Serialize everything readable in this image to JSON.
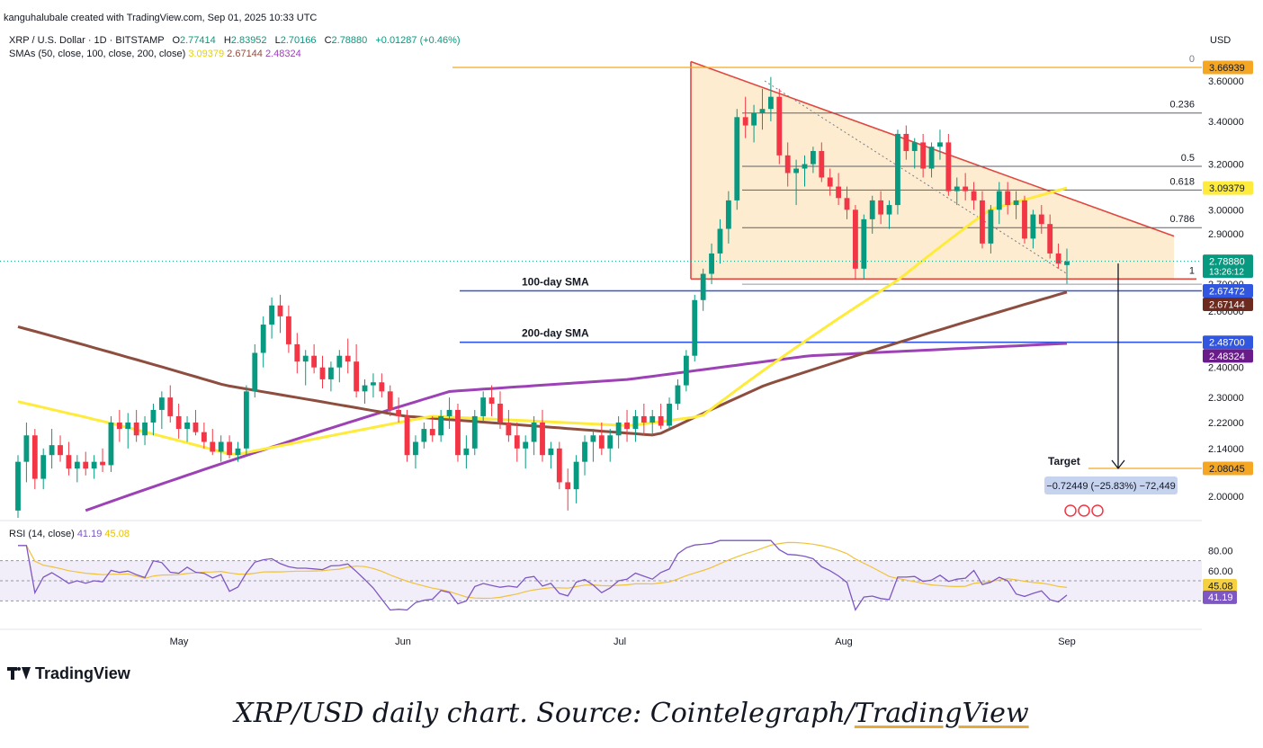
{
  "header": {
    "published": "kanguhalubale created with TradingView.com, Sep 01, 2025 10:33 UTC"
  },
  "legend": {
    "symbol": "XRP / U.S. Dollar · 1D · BITSTAMP",
    "open_label": "O",
    "open": "2.77414",
    "high_label": "H",
    "high": "2.83952",
    "low_label": "L",
    "low": "2.70166",
    "close_label": "C",
    "close": "2.78880",
    "change": "+0.01287 (+0.46%)",
    "sma_label": "SMAs (50, close, 100, close, 200, close)",
    "sma50": "3.09379",
    "sma100": "2.67144",
    "sma200": "2.48324"
  },
  "rsi_legend": {
    "label": "RSI (14, close)",
    "rsi": "41.19",
    "ma": "45.08"
  },
  "currency": "USD",
  "brand": "TradingView",
  "caption": {
    "part1": "XRP/USD daily chart. Source: Cointelegraph/",
    "part2": "TradingView"
  },
  "colors": {
    "up": "#089981",
    "down": "#f23645",
    "sma50": "#ffeb3b",
    "sma100": "#8d4e3f",
    "sma200": "#9c42b5",
    "triangle_fill": "#fde5c2",
    "triangle_line": "#e0473f",
    "fib": "#131722",
    "level_line": "#3157e0",
    "top_line": "#f5a623",
    "rsi": "#7e57c2"
  },
  "chart_data": {
    "type": "candlestick",
    "y_axis": {
      "ticks": [
        "3.60000",
        "3.40000",
        "3.20000",
        "3.00000",
        "2.90000",
        "2.70000",
        "2.60000",
        "2.40000",
        "2.30000",
        "2.22000",
        "2.14000",
        "2.00000"
      ],
      "min": 1.94,
      "max": 3.72,
      "scale": "log"
    },
    "x_axis": {
      "labels": [
        "May",
        "Jun",
        "Jul",
        "Aug",
        "Sep"
      ]
    },
    "candles_ohlc": [
      [
        1.96,
        2.12,
        1.94,
        2.1
      ],
      [
        2.1,
        2.22,
        2.04,
        2.18
      ],
      [
        2.18,
        2.2,
        2.02,
        2.05
      ],
      [
        2.05,
        2.14,
        2.02,
        2.12
      ],
      [
        2.12,
        2.2,
        2.08,
        2.15
      ],
      [
        2.15,
        2.18,
        2.1,
        2.12
      ],
      [
        2.12,
        2.16,
        2.06,
        2.08
      ],
      [
        2.08,
        2.12,
        2.04,
        2.1
      ],
      [
        2.1,
        2.13,
        2.06,
        2.08
      ],
      [
        2.08,
        2.12,
        2.05,
        2.1
      ],
      [
        2.1,
        2.14,
        2.07,
        2.09
      ],
      [
        2.09,
        2.24,
        2.07,
        2.22
      ],
      [
        2.22,
        2.26,
        2.16,
        2.2
      ],
      [
        2.2,
        2.25,
        2.14,
        2.22
      ],
      [
        2.22,
        2.26,
        2.16,
        2.18
      ],
      [
        2.18,
        2.24,
        2.15,
        2.22
      ],
      [
        2.22,
        2.28,
        2.18,
        2.26
      ],
      [
        2.26,
        2.32,
        2.2,
        2.3
      ],
      [
        2.3,
        2.34,
        2.22,
        2.24
      ],
      [
        2.24,
        2.28,
        2.17,
        2.2
      ],
      [
        2.2,
        2.24,
        2.16,
        2.22
      ],
      [
        2.22,
        2.26,
        2.18,
        2.19
      ],
      [
        2.19,
        2.22,
        2.14,
        2.16
      ],
      [
        2.16,
        2.2,
        2.12,
        2.13
      ],
      [
        2.13,
        2.18,
        2.1,
        2.16
      ],
      [
        2.16,
        2.18,
        2.11,
        2.12
      ],
      [
        2.12,
        2.16,
        2.1,
        2.14
      ],
      [
        2.14,
        2.34,
        2.12,
        2.32
      ],
      [
        2.32,
        2.48,
        2.3,
        2.45
      ],
      [
        2.45,
        2.58,
        2.4,
        2.55
      ],
      [
        2.55,
        2.65,
        2.5,
        2.62
      ],
      [
        2.62,
        2.66,
        2.52,
        2.58
      ],
      [
        2.58,
        2.62,
        2.45,
        2.48
      ],
      [
        2.48,
        2.52,
        2.38,
        2.42
      ],
      [
        2.42,
        2.46,
        2.34,
        2.44
      ],
      [
        2.44,
        2.48,
        2.38,
        2.4
      ],
      [
        2.4,
        2.44,
        2.33,
        2.36
      ],
      [
        2.36,
        2.42,
        2.32,
        2.4
      ],
      [
        2.4,
        2.46,
        2.35,
        2.44
      ],
      [
        2.44,
        2.5,
        2.38,
        2.42
      ],
      [
        2.42,
        2.48,
        2.3,
        2.32
      ],
      [
        2.32,
        2.36,
        2.28,
        2.34
      ],
      [
        2.34,
        2.38,
        2.3,
        2.35
      ],
      [
        2.35,
        2.38,
        2.3,
        2.32
      ],
      [
        2.32,
        2.34,
        2.24,
        2.26
      ],
      [
        2.26,
        2.3,
        2.22,
        2.24
      ],
      [
        2.24,
        2.26,
        2.1,
        2.12
      ],
      [
        2.12,
        2.18,
        2.08,
        2.16
      ],
      [
        2.16,
        2.22,
        2.14,
        2.2
      ],
      [
        2.2,
        2.24,
        2.16,
        2.18
      ],
      [
        2.18,
        2.26,
        2.16,
        2.24
      ],
      [
        2.24,
        2.3,
        2.2,
        2.26
      ],
      [
        2.26,
        2.28,
        2.1,
        2.12
      ],
      [
        2.12,
        2.18,
        2.08,
        2.14
      ],
      [
        2.14,
        2.26,
        2.12,
        2.24
      ],
      [
        2.24,
        2.32,
        2.22,
        2.3
      ],
      [
        2.3,
        2.34,
        2.24,
        2.28
      ],
      [
        2.28,
        2.32,
        2.2,
        2.22
      ],
      [
        2.22,
        2.26,
        2.16,
        2.18
      ],
      [
        2.18,
        2.22,
        2.1,
        2.14
      ],
      [
        2.14,
        2.18,
        2.08,
        2.16
      ],
      [
        2.16,
        2.24,
        2.12,
        2.22
      ],
      [
        2.22,
        2.26,
        2.1,
        2.12
      ],
      [
        2.12,
        2.16,
        2.08,
        2.14
      ],
      [
        2.14,
        2.16,
        2.02,
        2.04
      ],
      [
        2.04,
        2.08,
        1.96,
        2.02
      ],
      [
        2.02,
        2.12,
        1.98,
        2.1
      ],
      [
        2.1,
        2.18,
        2.06,
        2.16
      ],
      [
        2.16,
        2.2,
        2.1,
        2.18
      ],
      [
        2.18,
        2.22,
        2.12,
        2.14
      ],
      [
        2.14,
        2.2,
        2.1,
        2.18
      ],
      [
        2.18,
        2.24,
        2.14,
        2.22
      ],
      [
        2.22,
        2.26,
        2.16,
        2.2
      ],
      [
        2.2,
        2.26,
        2.16,
        2.24
      ],
      [
        2.24,
        2.28,
        2.18,
        2.22
      ],
      [
        2.22,
        2.26,
        2.18,
        2.24
      ],
      [
        2.24,
        2.28,
        2.2,
        2.21
      ],
      [
        2.21,
        2.3,
        2.2,
        2.28
      ],
      [
        2.28,
        2.36,
        2.26,
        2.34
      ],
      [
        2.34,
        2.46,
        2.32,
        2.44
      ],
      [
        2.44,
        2.66,
        2.42,
        2.64
      ],
      [
        2.64,
        2.76,
        2.6,
        2.74
      ],
      [
        2.74,
        2.86,
        2.7,
        2.82
      ],
      [
        2.82,
        2.96,
        2.78,
        2.92
      ],
      [
        2.92,
        3.08,
        2.86,
        3.04
      ],
      [
        3.04,
        3.46,
        3.0,
        3.42
      ],
      [
        3.42,
        3.52,
        3.32,
        3.38
      ],
      [
        3.38,
        3.48,
        3.3,
        3.44
      ],
      [
        3.44,
        3.56,
        3.36,
        3.46
      ],
      [
        3.46,
        3.62,
        3.4,
        3.52
      ],
      [
        3.52,
        3.56,
        3.2,
        3.24
      ],
      [
        3.24,
        3.3,
        3.1,
        3.16
      ],
      [
        3.16,
        3.22,
        3.02,
        3.18
      ],
      [
        3.18,
        3.24,
        3.1,
        3.2
      ],
      [
        3.2,
        3.28,
        3.16,
        3.26
      ],
      [
        3.26,
        3.3,
        3.12,
        3.14
      ],
      [
        3.14,
        3.18,
        3.06,
        3.1
      ],
      [
        3.1,
        3.16,
        3.02,
        3.05
      ],
      [
        3.05,
        3.1,
        2.96,
        3.0
      ],
      [
        3.0,
        3.02,
        2.72,
        2.76
      ],
      [
        2.76,
        2.98,
        2.72,
        2.96
      ],
      [
        2.96,
        3.06,
        2.9,
        3.04
      ],
      [
        3.04,
        3.08,
        2.94,
        2.98
      ],
      [
        2.98,
        3.04,
        2.92,
        3.02
      ],
      [
        3.02,
        3.36,
        2.98,
        3.34
      ],
      [
        3.34,
        3.38,
        3.22,
        3.26
      ],
      [
        3.26,
        3.32,
        3.18,
        3.3
      ],
      [
        3.3,
        3.34,
        3.14,
        3.18
      ],
      [
        3.18,
        3.3,
        3.14,
        3.28
      ],
      [
        3.28,
        3.36,
        3.22,
        3.3
      ],
      [
        3.3,
        3.34,
        3.06,
        3.08
      ],
      [
        3.08,
        3.14,
        3.02,
        3.1
      ],
      [
        3.1,
        3.16,
        3.04,
        3.08
      ],
      [
        3.08,
        3.12,
        3.0,
        3.04
      ],
      [
        3.04,
        3.08,
        2.84,
        2.86
      ],
      [
        2.86,
        3.02,
        2.82,
        3.0
      ],
      [
        3.0,
        3.12,
        2.94,
        3.08
      ],
      [
        3.08,
        3.12,
        2.98,
        3.02
      ],
      [
        3.02,
        3.08,
        2.96,
        3.04
      ],
      [
        3.04,
        3.06,
        2.86,
        2.88
      ],
      [
        2.88,
        3.0,
        2.84,
        2.98
      ],
      [
        2.98,
        3.02,
        2.9,
        2.94
      ],
      [
        2.94,
        2.98,
        2.8,
        2.82
      ],
      [
        2.82,
        2.86,
        2.76,
        2.78
      ],
      [
        2.77414,
        2.83952,
        2.70166,
        2.7888
      ]
    ],
    "triangle": {
      "apex_price": 3.7,
      "upper_right_price": 2.89,
      "base_price": 2.72
    },
    "fib_levels": [
      {
        "label": "0",
        "price": 3.66939
      },
      {
        "label": "0.236",
        "price": 3.44
      },
      {
        "label": "0.5",
        "price": 3.19
      },
      {
        "label": "0.618",
        "price": 3.085
      },
      {
        "label": "0.786",
        "price": 2.925
      },
      {
        "label": "1",
        "price": 2.72
      }
    ],
    "annotations": [
      {
        "text": "100-day SMA",
        "price": 2.67472
      },
      {
        "text": "200-day SMA",
        "price": 2.487
      },
      {
        "text": "Target",
        "price": 2.08045
      },
      {
        "text": "−0.72449 (−25.83%) −72,449"
      }
    ],
    "price_tags": [
      {
        "value": "3.66939",
        "kind": "fib0"
      },
      {
        "value": "3.09379",
        "kind": "sma50"
      },
      {
        "value": "2.78880",
        "kind": "last",
        "sub": "13:26:12"
      },
      {
        "value": "2.67472",
        "kind": "level"
      },
      {
        "value": "2.67144",
        "kind": "sma100"
      },
      {
        "value": "2.48700",
        "kind": "level"
      },
      {
        "value": "2.48324",
        "kind": "sma200"
      },
      {
        "value": "2.08045",
        "kind": "target"
      }
    ],
    "rsi": {
      "ticks": [
        "80.00",
        "60.00"
      ],
      "last": "41.19",
      "ma_last": "45.08",
      "band": [
        30,
        70
      ]
    },
    "grid": false,
    "legend_position": "top-left"
  }
}
